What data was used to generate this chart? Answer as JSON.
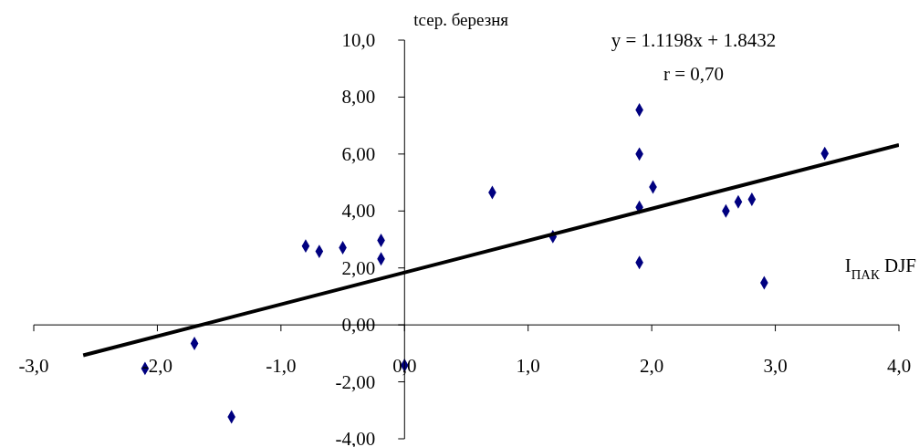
{
  "chart_data": {
    "type": "scatter",
    "ylabel": "tсер. березня",
    "xlabel": "I$_{ПАК}$ DJF",
    "annotations": [
      "y = 1.1198x + 1.8432",
      "r = 0,70"
    ],
    "xlim": [
      -3,
      4
    ],
    "ylim": [
      -4,
      10
    ],
    "xticks": [
      {
        "value": -3,
        "label": "-3,0"
      },
      {
        "value": -2,
        "label": "-2,0"
      },
      {
        "value": -1,
        "label": "-1,0"
      },
      {
        "value": 0,
        "label": "0,0"
      },
      {
        "value": 1,
        "label": "1,0"
      },
      {
        "value": 2,
        "label": "2,0"
      },
      {
        "value": 3,
        "label": "3,0"
      },
      {
        "value": 4,
        "label": "4,0"
      }
    ],
    "yticks": [
      {
        "value": -4,
        "label": "-4,00"
      },
      {
        "value": -2,
        "label": "-2,00"
      },
      {
        "value": 0,
        "label": "0,00"
      },
      {
        "value": 2,
        "label": "2,00"
      },
      {
        "value": 4,
        "label": "4,00"
      },
      {
        "value": 6,
        "label": "6,00"
      },
      {
        "value": 8,
        "label": "8,00"
      },
      {
        "value": 10,
        "label": "10,0"
      }
    ],
    "grid": false,
    "marker": "diamond",
    "series": [
      {
        "type": "scatter",
        "color": "#000080",
        "x": [
          -0.8,
          -0.69,
          -0.5,
          -0.19,
          -0.19,
          -1.7,
          -2.1,
          -1.4,
          0.0,
          1.9,
          1.9,
          0.71,
          2.01,
          1.9,
          1.2,
          2.6,
          2.7,
          2.81,
          3.4,
          1.9,
          2.91
        ],
        "values": [
          2.77,
          2.58,
          2.71,
          2.97,
          2.32,
          -0.65,
          -1.53,
          -3.23,
          -1.42,
          7.55,
          6.0,
          4.65,
          4.84,
          4.13,
          3.1,
          4.0,
          4.32,
          4.41,
          6.02,
          2.19,
          1.48
        ]
      },
      {
        "type": "line",
        "color": "#000000",
        "marker": "none",
        "x": [
          -2.6,
          4.0
        ],
        "values": [
          -1.07,
          6.32
        ]
      }
    ]
  }
}
